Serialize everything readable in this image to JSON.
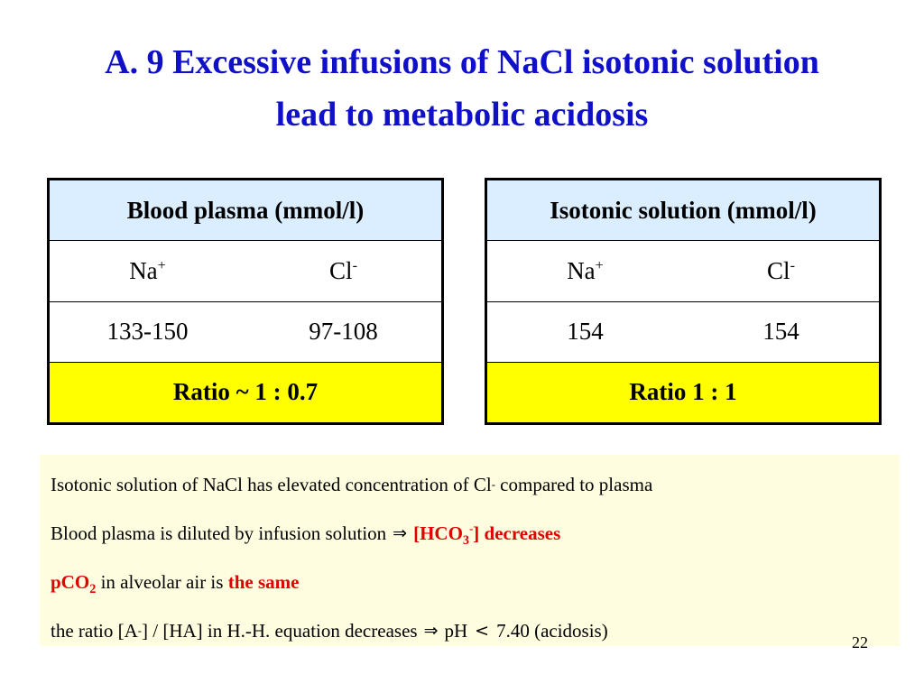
{
  "slide": {
    "title_line1": "A. 9 Excessive infusions of NaCl isotonic solution",
    "title_line2": "lead to metabolic acidosis",
    "page_number": "22"
  },
  "plasma_table": {
    "header": "Blood plasma (mmol/l)",
    "ion1": "Na",
    "ion1_charge": "+",
    "ion2": "Cl",
    "ion2_charge": "-",
    "value1": "133-150",
    "value2": "97-108",
    "ratio": "Ratio ~ 1 : 0.7"
  },
  "solution_table": {
    "header": "Isotonic solution (mmol/l)",
    "ion1": "Na",
    "ion1_charge": "+",
    "ion2": "Cl",
    "ion2_charge": "-",
    "value1": "154",
    "value2": "154",
    "ratio": "Ratio 1 : 1"
  },
  "notes": {
    "line1_a": "Isotonic solution of NaCl has elevated concentration of Cl",
    "line1_charge": "-",
    "line1_b": " compared to plasma",
    "line2_a": "Blood plasma is diluted by infusion solution",
    "line2_arrow": "⇒",
    "line2_red_a": "[HCO",
    "line2_red_sub": "3",
    "line2_red_sup": "-",
    "line2_red_b": "] decreases",
    "line3_red_a": "pCO",
    "line3_red_sub": "2",
    "line3_b": " in alveolar air is ",
    "line3_red_c": "the same",
    "line4_a": "the ratio [A",
    "line4_charge": "-",
    "line4_b": "] / [HA] in H.-H. equation decreases",
    "line4_arrow": "⇒",
    "line4_c": "pH",
    "line4_lt": "<",
    "line4_d": "7.40 (acidosis)"
  }
}
